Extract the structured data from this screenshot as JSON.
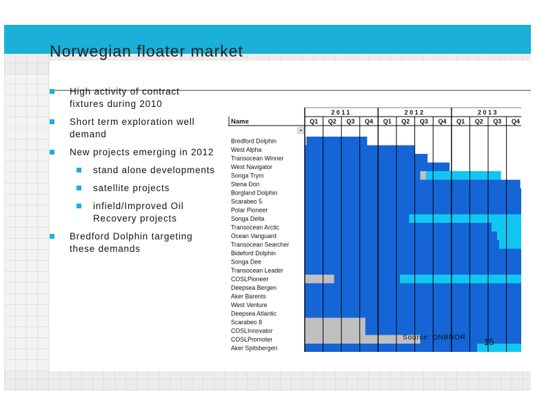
{
  "slide": {
    "title": "Norwegian floater market",
    "page_number": "15",
    "source": "Source:  DNBNOR",
    "colors": {
      "header_band": "#1ab0d8",
      "bullet": "#1ab0d8",
      "bar_dark": "#1565d6",
      "bar_light": "#11c7f2",
      "bar_grey": "#c0c0c0"
    }
  },
  "bullets": [
    {
      "text": "High activity of contract fixtures during 2010",
      "level": 1
    },
    {
      "text": "Short term exploration well demand",
      "level": 1
    },
    {
      "text": "New projects emerging in 2012",
      "level": 1
    },
    {
      "text": "stand alone developments",
      "level": 2
    },
    {
      "text": "satellite projects",
      "level": 2
    },
    {
      "text": "infield/Improved Oil Recovery projects",
      "level": 2
    },
    {
      "text": "Bredford Dolphin targeting these demands",
      "level": 1
    }
  ],
  "chart_data": {
    "type": "gantt",
    "name_header": "Name",
    "years": [
      "2011",
      "2012",
      "2013"
    ],
    "quarters": [
      "Q1",
      "Q2",
      "Q3",
      "Q4",
      "Q1",
      "Q2",
      "Q3",
      "Q4",
      "Q1",
      "Q2",
      "Q3",
      "Q4"
    ],
    "status_legend": {
      "D": "dark blue",
      "L": "light blue",
      "G": "grey"
    },
    "rigs": [
      {
        "name": "Bredford Dolphin",
        "segments": [
          [
            "G",
            0,
            0.1
          ],
          [
            "D",
            0.1,
            3.4
          ]
        ]
      },
      {
        "name": "West Alpha",
        "segments": [
          [
            "D",
            0,
            6
          ]
        ]
      },
      {
        "name": "Transocean Winner",
        "segments": [
          [
            "D",
            0,
            6.7
          ]
        ]
      },
      {
        "name": "West Navigator",
        "segments": [
          [
            "D",
            0,
            7.9
          ]
        ]
      },
      {
        "name": "Songa Trym",
        "segments": [
          [
            "D",
            0,
            6.3
          ],
          [
            "G",
            6.3,
            6.6
          ],
          [
            "L",
            6.6,
            10.7
          ]
        ]
      },
      {
        "name": "Stena Don",
        "segments": [
          [
            "D",
            0,
            11.75
          ]
        ]
      },
      {
        "name": "Borgland Dolphin",
        "segments": [
          [
            "D",
            0,
            12
          ]
        ]
      },
      {
        "name": "Scarabeo 5",
        "segments": [
          [
            "D",
            0,
            12
          ]
        ]
      },
      {
        "name": "Polar Pioneer",
        "segments": [
          [
            "D",
            0,
            12
          ]
        ]
      },
      {
        "name": "Songa Delta",
        "segments": [
          [
            "D",
            0,
            5.7
          ],
          [
            "L",
            5.7,
            12
          ]
        ]
      },
      {
        "name": "Transocean Arctic",
        "segments": [
          [
            "D",
            0,
            10.2
          ],
          [
            "L",
            10.2,
            12
          ]
        ]
      },
      {
        "name": "Ocean Vanguard",
        "segments": [
          [
            "D",
            0,
            10.5
          ],
          [
            "L",
            10.5,
            12
          ]
        ]
      },
      {
        "name": "Transocean Searcher",
        "segments": [
          [
            "D",
            0,
            10.6
          ],
          [
            "L",
            10.6,
            12
          ]
        ]
      },
      {
        "name": "Bideford Dolphin",
        "segments": [
          [
            "D",
            0,
            12
          ]
        ]
      },
      {
        "name": "Songa Dee",
        "segments": [
          [
            "D",
            0,
            12
          ]
        ]
      },
      {
        "name": "Transocean Leader",
        "segments": [
          [
            "D",
            0,
            12
          ]
        ]
      },
      {
        "name": "COSLPioneer",
        "segments": [
          [
            "G",
            0,
            1.6
          ],
          [
            "D",
            1.6,
            5.2
          ],
          [
            "L",
            5.2,
            12
          ]
        ]
      },
      {
        "name": "Deepsea Bergen",
        "segments": [
          [
            "D",
            0,
            12
          ]
        ]
      },
      {
        "name": "Aker Barents",
        "segments": [
          [
            "D",
            0,
            12
          ]
        ]
      },
      {
        "name": "West Venture",
        "segments": [
          [
            "D",
            0,
            12
          ]
        ]
      },
      {
        "name": "Deepsea Atlantic",
        "segments": [
          [
            "D",
            0,
            12
          ]
        ]
      },
      {
        "name": "Scarabeo 8",
        "segments": [
          [
            "G",
            0,
            3.3
          ],
          [
            "D",
            3.3,
            12
          ]
        ]
      },
      {
        "name": "COSLInnovator",
        "segments": [
          [
            "G",
            0,
            3.3
          ],
          [
            "D",
            3.3,
            12
          ]
        ]
      },
      {
        "name": "COSLPromoter",
        "segments": [
          [
            "G",
            0,
            6.3
          ],
          [
            "D",
            6.3,
            12
          ]
        ]
      },
      {
        "name": "Aker Spitsbergen",
        "segments": [
          [
            "D",
            0,
            9.4
          ],
          [
            "L",
            9.4,
            12
          ]
        ]
      }
    ]
  }
}
